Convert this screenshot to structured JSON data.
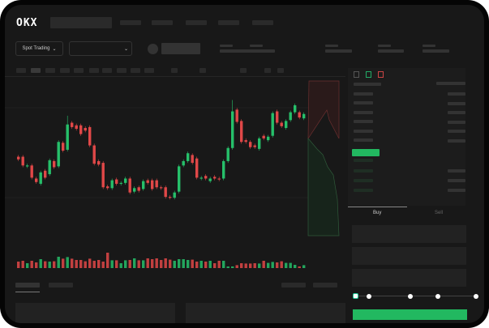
{
  "header": {
    "logo": "OKX",
    "mode_selector": "Spot Trading"
  },
  "trade": {
    "tabs": [
      {
        "label": "Buy",
        "active": true
      },
      {
        "label": "Sell",
        "active": false
      }
    ],
    "leverage_fraction": 0
  },
  "colors": {
    "up": "#26c06a",
    "down": "#e04848",
    "accent": "#22b860",
    "background": "#181818"
  },
  "chart_data": {
    "type": "candlestick",
    "ohlc": [
      [
        58,
        55
      ],
      [
        58,
        48
      ],
      [
        47,
        48
      ],
      [
        48,
        34
      ],
      [
        33,
        29
      ],
      [
        27,
        40
      ],
      [
        42,
        34
      ],
      [
        38,
        54
      ],
      [
        53,
        46
      ],
      [
        47,
        75
      ],
      [
        74,
        65
      ],
      [
        66,
        95
      ],
      [
        97,
        92
      ],
      [
        94,
        90
      ],
      [
        94,
        84
      ],
      [
        91,
        88
      ],
      [
        92,
        71
      ],
      [
        71,
        50
      ],
      [
        53,
        49
      ],
      [
        51,
        23
      ],
      [
        24,
        22
      ],
      [
        22,
        31
      ],
      [
        32,
        27
      ],
      [
        27,
        28
      ],
      [
        28,
        33
      ],
      [
        33,
        17
      ],
      [
        18,
        22
      ],
      [
        23,
        19
      ],
      [
        21,
        30
      ],
      [
        31,
        28
      ],
      [
        31,
        21
      ],
      [
        31,
        23
      ],
      [
        23,
        22
      ],
      [
        23,
        12
      ],
      [
        12,
        11
      ],
      [
        11,
        17
      ],
      [
        18,
        47
      ],
      [
        48,
        53
      ],
      [
        53,
        62
      ],
      [
        60,
        51
      ],
      [
        56,
        34
      ],
      [
        33,
        34
      ],
      [
        36,
        33
      ],
      [
        30,
        33
      ],
      [
        35,
        33
      ],
      [
        33,
        32
      ],
      [
        33,
        53
      ],
      [
        53,
        68
      ],
      [
        68,
        110
      ],
      [
        112,
        98
      ],
      [
        99,
        75
      ],
      [
        77,
        75
      ],
      [
        75,
        69
      ],
      [
        71,
        69
      ],
      [
        67,
        79
      ],
      [
        82,
        79
      ],
      [
        77,
        81
      ],
      [
        82,
        108
      ],
      [
        110,
        97
      ],
      [
        97,
        93
      ],
      [
        91,
        99
      ],
      [
        100,
        109
      ],
      [
        109,
        117
      ],
      [
        109,
        103
      ],
      [
        102,
        107
      ]
    ],
    "volume": [
      40,
      45,
      30,
      45,
      35,
      55,
      42,
      40,
      42,
      70,
      58,
      68,
      58,
      50,
      50,
      42,
      58,
      45,
      50,
      40,
      95,
      48,
      48,
      30,
      48,
      50,
      60,
      48,
      48,
      60,
      55,
      60,
      50,
      60,
      52,
      45,
      55,
      55,
      50,
      52,
      40,
      45,
      40,
      45,
      30,
      45,
      45,
      10,
      10,
      18,
      30,
      28,
      28,
      30,
      28,
      45,
      32,
      38,
      35,
      42,
      32,
      32,
      20,
      10,
      18
    ],
    "ylim": [
      0,
      130
    ]
  }
}
